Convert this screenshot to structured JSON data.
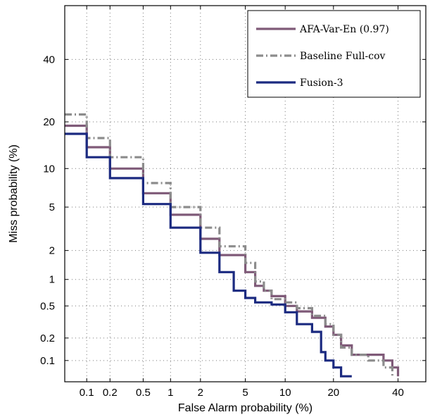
{
  "chart_data": {
    "type": "line",
    "title": "",
    "xlabel": "False Alarm probability (%)",
    "ylabel": "Miss probability (%)",
    "scale": "normal-deviate (DET)",
    "xlim": [
      0.05,
      50
    ],
    "ylim": [
      0.05,
      60
    ],
    "xticks": [
      0.1,
      0.2,
      0.5,
      1,
      2,
      5,
      10,
      20,
      40
    ],
    "xtick_labels": [
      "0.1",
      "0.2",
      "0.5",
      "1",
      "2",
      "5",
      "10",
      "20",
      "40"
    ],
    "yticks": [
      0.1,
      0.2,
      0.5,
      1,
      2,
      5,
      10,
      20,
      40
    ],
    "ytick_labels": [
      "0.1",
      "0.2",
      "0.5",
      "1",
      "2",
      "5",
      "10",
      "20",
      "40"
    ],
    "grid": true,
    "legend_position": "top-right",
    "series": [
      {
        "name": "AFA-Var-En (0.97)",
        "color": "#7f5a78",
        "dash": "solid",
        "points": [
          [
            0.05,
            19
          ],
          [
            0.1,
            14
          ],
          [
            0.2,
            10
          ],
          [
            0.5,
            6.5
          ],
          [
            1,
            4.3
          ],
          [
            2,
            2.6
          ],
          [
            3,
            1.8
          ],
          [
            5,
            1.2
          ],
          [
            6,
            0.85
          ],
          [
            7,
            0.75
          ],
          [
            8,
            0.65
          ],
          [
            10,
            0.5
          ],
          [
            12,
            0.43
          ],
          [
            15,
            0.36
          ],
          [
            18,
            0.28
          ],
          [
            20,
            0.22
          ],
          [
            22,
            0.16
          ],
          [
            25,
            0.12
          ],
          [
            30,
            0.12
          ],
          [
            35,
            0.1
          ],
          [
            38,
            0.08
          ],
          [
            40,
            0.06
          ]
        ]
      },
      {
        "name": "Baseline Full-cov",
        "color": "#8c8c8c",
        "dash": "dashdot",
        "points": [
          [
            0.05,
            22
          ],
          [
            0.1,
            16
          ],
          [
            0.2,
            12
          ],
          [
            0.5,
            7.8
          ],
          [
            1,
            5
          ],
          [
            2,
            3.3
          ],
          [
            3,
            2.2
          ],
          [
            5,
            1.5
          ],
          [
            6,
            0.95
          ],
          [
            7,
            0.75
          ],
          [
            8,
            0.6
          ],
          [
            10,
            0.55
          ],
          [
            12,
            0.47
          ],
          [
            15,
            0.38
          ],
          [
            18,
            0.3
          ],
          [
            20,
            0.22
          ],
          [
            22,
            0.15
          ],
          [
            25,
            0.12
          ],
          [
            30,
            0.1
          ],
          [
            35,
            0.08
          ],
          [
            38,
            0.06
          ]
        ]
      },
      {
        "name": "Fusion-3",
        "color": "#1b2a80",
        "dash": "solid",
        "points": [
          [
            0.05,
            17
          ],
          [
            0.1,
            12
          ],
          [
            0.2,
            8.5
          ],
          [
            0.5,
            5.3
          ],
          [
            1,
            3.3
          ],
          [
            2,
            1.9
          ],
          [
            3,
            1.2
          ],
          [
            4,
            0.75
          ],
          [
            5,
            0.62
          ],
          [
            6,
            0.55
          ],
          [
            8,
            0.52
          ],
          [
            10,
            0.42
          ],
          [
            12,
            0.3
          ],
          [
            15,
            0.24
          ],
          [
            17,
            0.13
          ],
          [
            18,
            0.1
          ],
          [
            20,
            0.08
          ],
          [
            22,
            0.06
          ],
          [
            25,
            0.06
          ]
        ]
      }
    ]
  }
}
